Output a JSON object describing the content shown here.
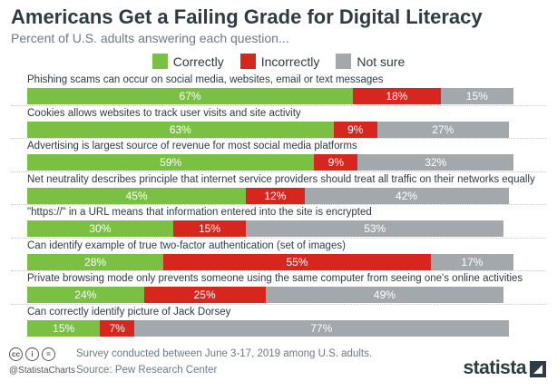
{
  "chart_data": {
    "type": "bar",
    "orientation": "horizontal",
    "stacked": true,
    "normalized": true,
    "title": "Americans Get a Failing Grade for Digital Literacy",
    "subtitle": "Percent of U.S. adults answering each question...",
    "legend_position": "top",
    "categories": [
      "Phishing scams can occur on social media, websites, email or text messages",
      "Cookies allows websites to track user visits and site activity",
      "Advertising is largest source of revenue for most social media platforms",
      "Net neutrality describes principle that internet service providers should treat all traffic on their networks equally",
      "\"https://\" in a URL means that information entered into the site is encrypted",
      "Can identify example of true two-factor authentication (set of images)",
      "Private browsing mode only prevents someone using the same computer from seeing one's online activities",
      "Can correctly identify picture of Jack Dorsey"
    ],
    "series": [
      {
        "name": "Correctly",
        "color": "#7ac143",
        "values": [
          67,
          63,
          59,
          45,
          30,
          28,
          24,
          15
        ]
      },
      {
        "name": "Incorrectly",
        "color": "#d7261e",
        "values": [
          18,
          9,
          9,
          12,
          15,
          55,
          25,
          7
        ]
      },
      {
        "name": "Not sure",
        "color": "#a3a8ad",
        "values": [
          15,
          27,
          32,
          42,
          53,
          17,
          49,
          77
        ]
      }
    ],
    "totals": [
      100,
      99,
      100,
      99,
      98,
      100,
      98,
      99
    ]
  },
  "footer": {
    "note": "Survey conducted between June 3-17, 2019 among U.S. adults.",
    "source": "Source: Pew Research Center",
    "handle": "@StatistaCharts",
    "brand": "statista",
    "license_icons": [
      "creative-commons-icon",
      "attribution-icon",
      "no-derivatives-icon"
    ],
    "license_glyphs": [
      "cc",
      "i",
      "="
    ]
  }
}
